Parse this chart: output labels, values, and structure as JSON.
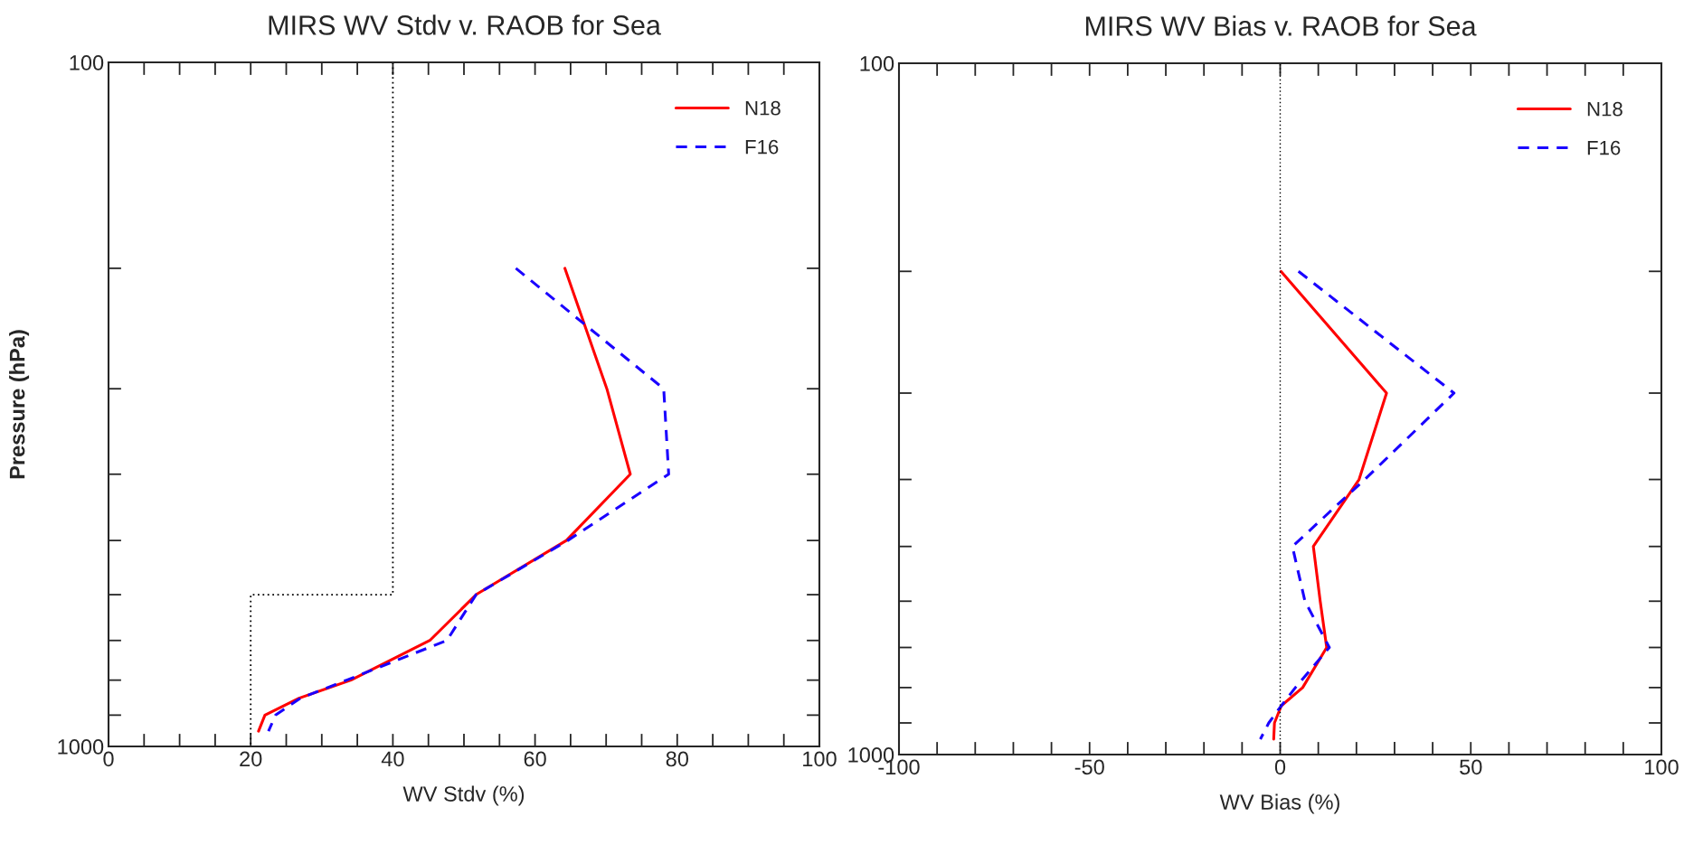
{
  "chart_data": [
    {
      "type": "line",
      "title": "MIRS WV Stdv v. RAOB for Sea",
      "xlabel": "WV Stdv (%)",
      "ylabel": "Pressure (hPa)",
      "log": "y",
      "legend": "top right",
      "xlim": [
        0,
        100
      ],
      "ylim": [
        1000,
        100
      ],
      "xticks": [
        0,
        {
          "value": 5,
          "label": null
        },
        {
          "value": 10,
          "label": null
        },
        {
          "value": 15,
          "label": null
        },
        20,
        {
          "value": 25,
          "label": null
        },
        {
          "value": 30,
          "label": null
        },
        {
          "value": 35,
          "label": null
        },
        40,
        {
          "value": 45,
          "label": null
        },
        {
          "value": 50,
          "label": null
        },
        {
          "value": 55,
          "label": null
        },
        60,
        {
          "value": 65,
          "label": null
        },
        {
          "value": 70,
          "label": null
        },
        {
          "value": 75,
          "label": null
        },
        80,
        {
          "value": 85,
          "label": null
        },
        {
          "value": 90,
          "label": null
        },
        {
          "value": 95,
          "label": null
        },
        100
      ],
      "yticks": [
        100,
        {
          "value": 200,
          "label": null
        },
        {
          "value": 300,
          "label": null
        },
        {
          "value": 400,
          "label": null
        },
        {
          "value": 500,
          "label": null
        },
        {
          "value": 600,
          "label": null
        },
        {
          "value": 700,
          "label": null
        },
        {
          "value": 800,
          "label": null
        },
        {
          "value": 900,
          "label": null
        },
        1000
      ],
      "series": [
        {
          "name": "N18",
          "color": "#ff0000",
          "line_style": "solid",
          "x": [
            64.2,
            70.1,
            73.4,
            64.4,
            51.7,
            45.2,
            34.1,
            26.8,
            22.0,
            21.1
          ],
          "values": [
            200,
            300,
            400,
            500,
            600,
            700,
            800,
            850,
            900,
            950
          ]
        },
        {
          "name": "F16",
          "color": "#1a00ff",
          "line_style": "dashed",
          "x": [
            57.3,
            78.1,
            78.8,
            64.6,
            51.7,
            47.6,
            33.5,
            27.0,
            23.5,
            22.5
          ],
          "values": [
            200,
            300,
            400,
            500,
            600,
            700,
            800,
            850,
            900,
            950
          ]
        },
        {
          "color": "#000000",
          "line_style": "dotted",
          "x": [
            40,
            40,
            20,
            20
          ],
          "values": [
            100,
            600,
            600,
            1000
          ]
        }
      ]
    },
    {
      "type": "line",
      "title": "MIRS WV Bias v. RAOB for Sea",
      "xlabel": "WV Bias (%)",
      "log": "y",
      "legend": "top right",
      "xlim": [
        -100,
        100
      ],
      "ylim": [
        1000,
        100
      ],
      "xticks": [
        -100,
        {
          "value": -90,
          "label": null
        },
        {
          "value": -80,
          "label": null
        },
        {
          "value": -70,
          "label": null
        },
        {
          "value": -60,
          "label": null
        },
        -50,
        {
          "value": -40,
          "label": null
        },
        {
          "value": -30,
          "label": null
        },
        {
          "value": -20,
          "label": null
        },
        {
          "value": -10,
          "label": null
        },
        0,
        {
          "value": 10,
          "label": null
        },
        {
          "value": 20,
          "label": null
        },
        {
          "value": 30,
          "label": null
        },
        {
          "value": 40,
          "label": null
        },
        50,
        {
          "value": 60,
          "label": null
        },
        {
          "value": 70,
          "label": null
        },
        {
          "value": 80,
          "label": null
        },
        {
          "value": 90,
          "label": null
        },
        100
      ],
      "yticks": [
        100,
        {
          "value": 200,
          "label": null
        },
        {
          "value": 300,
          "label": null
        },
        {
          "value": 400,
          "label": null
        },
        {
          "value": 500,
          "label": null
        },
        {
          "value": 600,
          "label": null
        },
        {
          "value": 700,
          "label": null
        },
        {
          "value": 800,
          "label": null
        },
        {
          "value": 900,
          "label": null
        },
        1000
      ],
      "ref_lines": [
        {
          "axis": "x",
          "value": 0,
          "color": "#000000",
          "line_style": "dotted"
        }
      ],
      "series": [
        {
          "name": "N18",
          "color": "#ff0000",
          "line_style": "solid",
          "x": [
            0.2,
            27.9,
            20.7,
            8.7,
            10.5,
            12.2,
            5.9,
            0.3,
            -1.5,
            -1.7
          ],
          "values": [
            200,
            300,
            400,
            500,
            600,
            700,
            800,
            850,
            900,
            950
          ]
        },
        {
          "name": "F16",
          "color": "#1a00ff",
          "line_style": "dashed",
          "x": [
            4.8,
            45.6,
            22.2,
            3.2,
            6.5,
            12.9,
            4.0,
            0.3,
            -3.0,
            -5.2
          ],
          "values": [
            200,
            300,
            400,
            500,
            600,
            700,
            800,
            850,
            900,
            950
          ]
        }
      ]
    }
  ]
}
